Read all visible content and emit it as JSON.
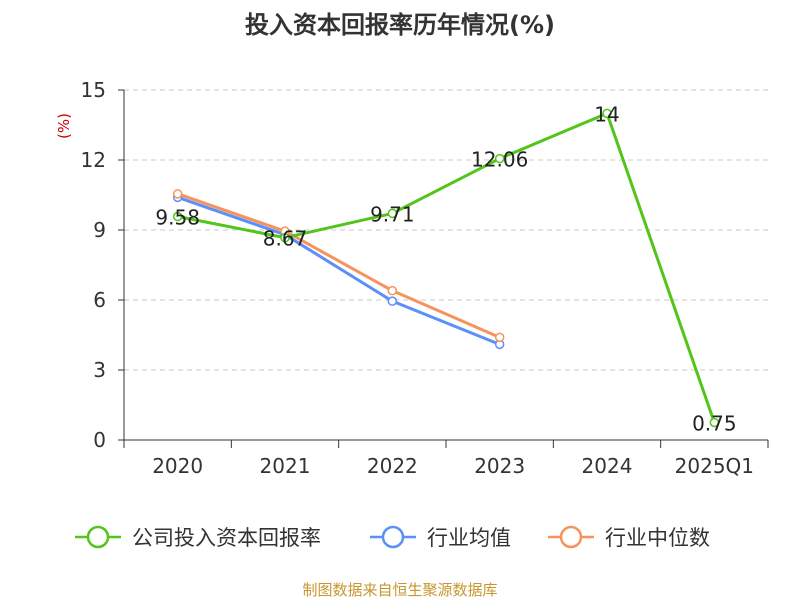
{
  "chart_data": {
    "type": "line",
    "title": "投入资本回报率历年情况(%)",
    "ylabel": "(%)",
    "xlabel": "",
    "categories": [
      "2020",
      "2021",
      "2022",
      "2023",
      "2024",
      "2025Q1"
    ],
    "ylim": [
      0,
      15
    ],
    "yticks": [
      0,
      3,
      6,
      9,
      12,
      15
    ],
    "grid": true,
    "legend_position": "bottom",
    "series": [
      {
        "name": "公司投入资本回报率",
        "color": "#52c41a",
        "values": [
          9.58,
          8.67,
          9.71,
          12.06,
          14,
          0.75
        ],
        "labels": [
          "9.58",
          "8.67",
          "9.71",
          "12.06",
          "14",
          "0.75"
        ]
      },
      {
        "name": "行业均值",
        "color": "#5b8ff9",
        "values": [
          10.4,
          8.8,
          5.95,
          4.1,
          null,
          null
        ]
      },
      {
        "name": "行业中位数",
        "color": "#f6935c",
        "values": [
          10.55,
          8.95,
          6.4,
          4.4,
          null,
          null
        ]
      }
    ]
  },
  "source": "制图数据来自恒生聚源数据库"
}
